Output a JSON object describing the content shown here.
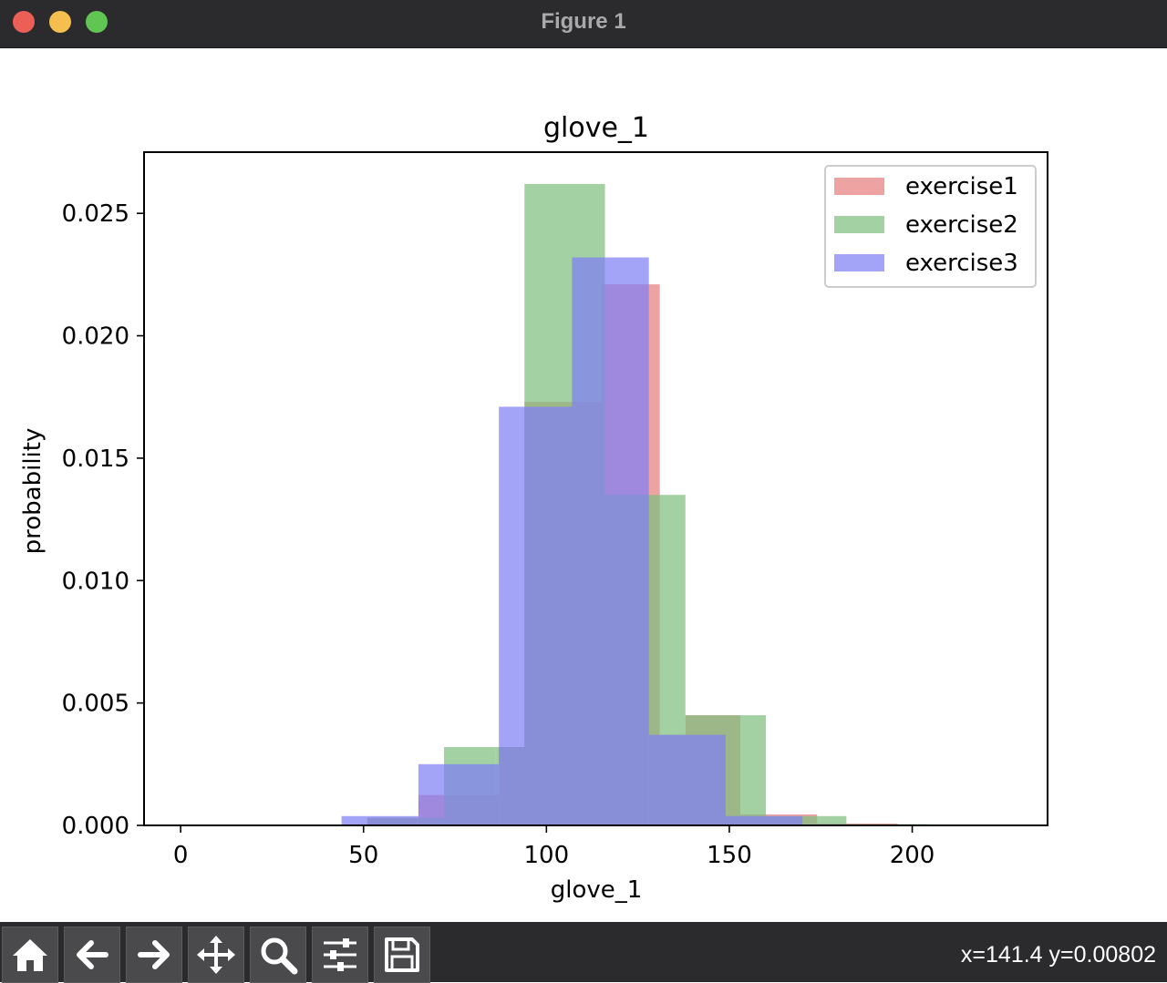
{
  "window": {
    "title": "Figure 1"
  },
  "toolbar": {
    "buttons": [
      {
        "name": "home-button",
        "icon": "home-icon"
      },
      {
        "name": "back-button",
        "icon": "arrow-left-icon"
      },
      {
        "name": "forward-button",
        "icon": "arrow-right-icon"
      },
      {
        "name": "pan-button",
        "icon": "move-icon"
      },
      {
        "name": "zoom-button",
        "icon": "magnifier-icon"
      },
      {
        "name": "configure-subplots-button",
        "icon": "sliders-icon"
      },
      {
        "name": "save-button",
        "icon": "floppy-disk-icon"
      }
    ],
    "coords": "x=141.4 y=0.00802"
  },
  "chart_data": {
    "type": "bar",
    "title": "glove_1",
    "xlabel": "glove_1",
    "ylabel": "probability",
    "xlim": [
      -10,
      237
    ],
    "ylim": [
      0,
      0.0275
    ],
    "xticks": [
      0,
      50,
      100,
      150,
      200
    ],
    "yticks": [
      "0.000",
      "0.005",
      "0.010",
      "0.015",
      "0.020",
      "0.025"
    ],
    "legend_position": "upper right",
    "series": [
      {
        "name": "exercise1",
        "color": "#e87f7f",
        "bins": [
          {
            "x0": 51,
            "x1": 65,
            "y": 0.00031
          },
          {
            "x0": 65,
            "x1": 72,
            "y": 0.00124
          },
          {
            "x0": 72,
            "x1": 87,
            "y": 0.00124
          },
          {
            "x0": 87,
            "x1": 94,
            "y": 0.0032
          },
          {
            "x0": 94,
            "x1": 115,
            "y": 0.0173
          },
          {
            "x0": 115,
            "x1": 131,
            "y": 0.0221
          },
          {
            "x0": 131,
            "x1": 138,
            "y": 0.0037
          },
          {
            "x0": 138,
            "x1": 153,
            "y": 0.0045
          },
          {
            "x0": 153,
            "x1": 174,
            "y": 0.00045
          },
          {
            "x0": 174,
            "x1": 196,
            "y": 8e-05
          }
        ]
      },
      {
        "name": "exercise2",
        "color": "#7fbf7f",
        "bins": [
          {
            "x0": 51,
            "x1": 72,
            "y": 0.00031
          },
          {
            "x0": 72,
            "x1": 86,
            "y": 0.0032
          },
          {
            "x0": 86,
            "x1": 94,
            "y": 0.0032
          },
          {
            "x0": 94,
            "x1": 116,
            "y": 0.0262
          },
          {
            "x0": 116,
            "x1": 138,
            "y": 0.0135
          },
          {
            "x0": 138,
            "x1": 160,
            "y": 0.0045
          },
          {
            "x0": 160,
            "x1": 182,
            "y": 0.00038
          },
          {
            "x0": 182,
            "x1": 204,
            "y": 5e-05
          }
        ]
      },
      {
        "name": "exercise3",
        "color": "#7f7ff5",
        "bins": [
          {
            "x0": 44,
            "x1": 51,
            "y": 0.00038
          },
          {
            "x0": 51,
            "x1": 65,
            "y": 0.00038
          },
          {
            "x0": 65,
            "x1": 87,
            "y": 0.0025
          },
          {
            "x0": 87,
            "x1": 107,
            "y": 0.0171
          },
          {
            "x0": 107,
            "x1": 128,
            "y": 0.0232
          },
          {
            "x0": 128,
            "x1": 149,
            "y": 0.0037
          },
          {
            "x0": 149,
            "x1": 170,
            "y": 0.00038
          }
        ]
      }
    ]
  }
}
